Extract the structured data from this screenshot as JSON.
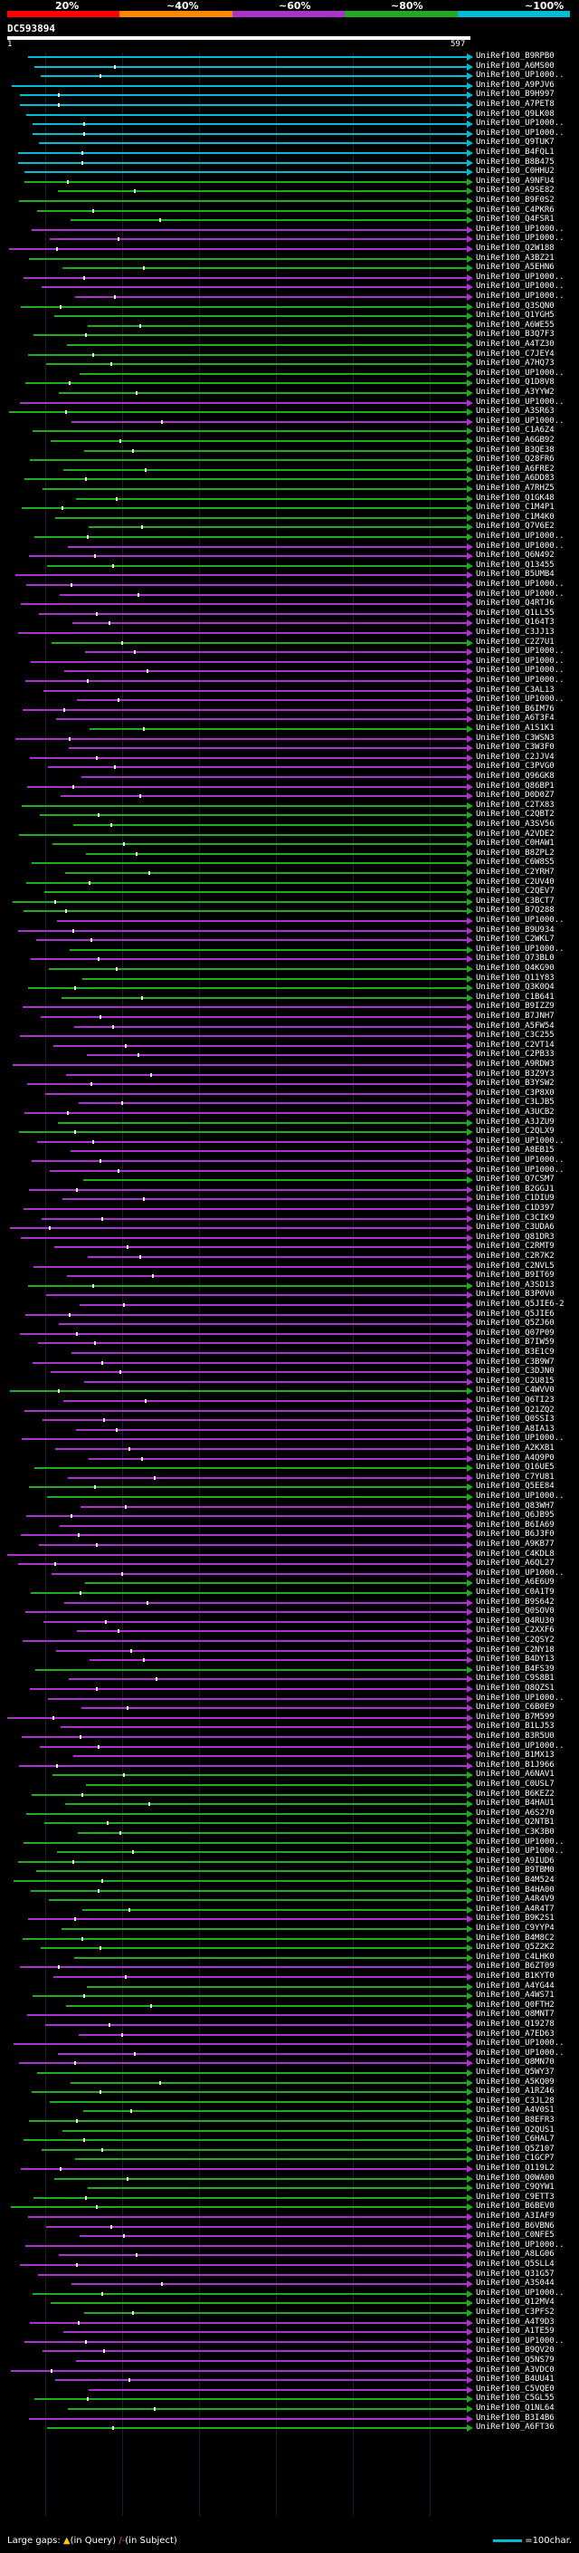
{
  "scale": {
    "labels": [
      "20%",
      "~40%",
      "~60%",
      "~80%",
      "~100%"
    ],
    "colors": [
      "#ff0000",
      "#ff8800",
      "#aa33cc",
      "#22aa22",
      "#00bcd4"
    ]
  },
  "query": {
    "id": "DC593894",
    "start": "1",
    "end": "597"
  },
  "legend": {
    "text": "Large gaps:",
    "query_mark": "▲",
    "query_text": "(in Query)",
    "subject_mark": "/-",
    "subject_text": "(in Subject)",
    "scale_text": "=100char."
  },
  "hits": [
    {
      "label": "UniRef100_B9RPB0",
      "color": "#00bcd4"
    },
    {
      "label": "UniRef100_A6MS00",
      "color": "#00bcd4"
    },
    {
      "label": "UniRef100_UP1000..",
      "color": "#00bcd4"
    },
    {
      "label": "UniRef100_A9PJV6",
      "color": "#00bcd4"
    },
    {
      "label": "UniRef100_B9H997",
      "color": "#00bcd4"
    },
    {
      "label": "UniRef100_A7PET8",
      "color": "#00bcd4"
    },
    {
      "label": "UniRef100_Q9LK08",
      "color": "#00bcd4"
    },
    {
      "label": "UniRef100_UP1000..",
      "color": "#00bcd4"
    },
    {
      "label": "UniRef100_UP1000..",
      "color": "#00bcd4"
    },
    {
      "label": "UniRef100_Q9TUK7",
      "color": "#00bcd4"
    },
    {
      "label": "UniRef100_B4FQL1",
      "color": "#00bcd4"
    },
    {
      "label": "UniRef100_B8B475",
      "color": "#00bcd4"
    },
    {
      "label": "UniRef100_C0HHU2",
      "color": "#00bcd4"
    },
    {
      "label": "UniRef100_A9NFU4",
      "color": "#22aa22"
    },
    {
      "label": "UniRef100_A9SE82",
      "color": "#22aa22"
    },
    {
      "label": "UniRef100_B9F0S2",
      "color": "#22aa22"
    },
    {
      "label": "UniRef100_C4PKR6",
      "color": "#22aa22"
    },
    {
      "label": "UniRef100_Q4FSR1",
      "color": "#22aa22"
    },
    {
      "label": "UniRef100_UP1000..",
      "color": "#aa33cc"
    },
    {
      "label": "UniRef100_UP1000..",
      "color": "#aa33cc"
    },
    {
      "label": "UniRef100_Q2W188",
      "color": "#aa33cc"
    },
    {
      "label": "UniRef100_A3BZ21",
      "color": "#22aa22"
    },
    {
      "label": "UniRef100_A5EHN6",
      "color": "#22aa22"
    },
    {
      "label": "UniRef100_UP1000..",
      "color": "#aa33cc"
    },
    {
      "label": "UniRef100_UP1000..",
      "color": "#aa33cc"
    },
    {
      "label": "UniRef100_UP1000..",
      "color": "#aa33cc"
    },
    {
      "label": "UniRef100_Q3SQN0",
      "color": "#22aa22"
    },
    {
      "label": "UniRef100_Q1YGH5",
      "color": "#22aa22"
    },
    {
      "label": "UniRef100_A6WE55",
      "color": "#22aa22"
    },
    {
      "label": "UniRef100_B3Q7F3",
      "color": "#22aa22"
    },
    {
      "label": "UniRef100_A4TZ30",
      "color": "#22aa22"
    },
    {
      "label": "UniRef100_C7JEY4",
      "color": "#22aa22"
    },
    {
      "label": "UniRef100_A7HQ73",
      "color": "#22aa22"
    },
    {
      "label": "UniRef100_UP1000..",
      "color": "#22aa22"
    },
    {
      "label": "UniRef100_Q1D8V8",
      "color": "#22aa22"
    },
    {
      "label": "UniRef100_A3YYW2",
      "color": "#22aa22"
    },
    {
      "label": "UniRef100_UP1000..",
      "color": "#aa33cc"
    },
    {
      "label": "UniRef100_A3SR63",
      "color": "#22aa22"
    },
    {
      "label": "UniRef100_UP1000..",
      "color": "#aa33cc"
    },
    {
      "label": "UniRef100_C1A6Z4",
      "color": "#22aa22"
    },
    {
      "label": "UniRef100_A6GB92",
      "color": "#22aa22"
    },
    {
      "label": "UniRef100_B3QE38",
      "color": "#22aa22"
    },
    {
      "label": "UniRef100_Q28FR6",
      "color": "#22aa22"
    },
    {
      "label": "UniRef100_A6FRE2",
      "color": "#22aa22"
    },
    {
      "label": "UniRef100_A6DD83",
      "color": "#22aa22"
    },
    {
      "label": "UniRef100_A7RHZ5",
      "color": "#22aa22"
    },
    {
      "label": "UniRef100_Q1GK48",
      "color": "#22aa22"
    },
    {
      "label": "UniRef100_C1M4P1",
      "color": "#22aa22"
    },
    {
      "label": "UniRef100_C1M4K0",
      "color": "#22aa22"
    },
    {
      "label": "UniRef100_Q7V6E2",
      "color": "#22aa22"
    },
    {
      "label": "UniRef100_UP1000..",
      "color": "#22aa22"
    },
    {
      "label": "UniRef100_UP1000..",
      "color": "#aa33cc"
    },
    {
      "label": "UniRef100_Q6N492",
      "color": "#aa33cc"
    },
    {
      "label": "UniRef100_Q13455",
      "color": "#22aa22"
    },
    {
      "label": "UniRef100_B5UMB4",
      "color": "#aa33cc"
    },
    {
      "label": "UniRef100_UP1000..",
      "color": "#aa33cc"
    },
    {
      "label": "UniRef100_UP1000..",
      "color": "#aa33cc"
    },
    {
      "label": "UniRef100_Q4RTJ6",
      "color": "#aa33cc"
    },
    {
      "label": "UniRef100_Q1LL55",
      "color": "#aa33cc"
    },
    {
      "label": "UniRef100_Q164T3",
      "color": "#aa33cc"
    },
    {
      "label": "UniRef100_C3JJ13",
      "color": "#aa33cc"
    },
    {
      "label": "UniRef100_C2Z7U1",
      "color": "#22aa22"
    },
    {
      "label": "UniRef100_UP1000..",
      "color": "#aa33cc"
    },
    {
      "label": "UniRef100_UP1000..",
      "color": "#aa33cc"
    },
    {
      "label": "UniRef100_UP1000..",
      "color": "#aa33cc"
    },
    {
      "label": "UniRef100_UP1000..",
      "color": "#aa33cc"
    },
    {
      "label": "UniRef100_C3AL13",
      "color": "#aa33cc"
    },
    {
      "label": "UniRef100_UP1000..",
      "color": "#aa33cc"
    },
    {
      "label": "UniRef100_B6IM76",
      "color": "#aa33cc"
    },
    {
      "label": "UniRef100_A6T3F4",
      "color": "#aa33cc"
    },
    {
      "label": "UniRef100_A1S1K1",
      "color": "#22aa22"
    },
    {
      "label": "UniRef100_C3WSN3",
      "color": "#aa33cc"
    },
    {
      "label": "UniRef100_C3W3F0",
      "color": "#aa33cc"
    },
    {
      "label": "UniRef100_C2JJV4",
      "color": "#aa33cc"
    },
    {
      "label": "UniRef100_C3PVG0",
      "color": "#aa33cc"
    },
    {
      "label": "UniRef100_Q96GK8",
      "color": "#aa33cc"
    },
    {
      "label": "UniRef100_Q86BP1",
      "color": "#aa33cc"
    },
    {
      "label": "UniRef100_D0D0Z7",
      "color": "#aa33cc"
    },
    {
      "label": "UniRef100_C2TX83",
      "color": "#22aa22"
    },
    {
      "label": "UniRef100_C2QBT2",
      "color": "#22aa22"
    },
    {
      "label": "UniRef100_A3SV56",
      "color": "#22aa22"
    },
    {
      "label": "UniRef100_A2VDE2",
      "color": "#22aa22"
    },
    {
      "label": "UniRef100_C0HAW1",
      "color": "#22aa22"
    },
    {
      "label": "UniRef100_B8ZPL2",
      "color": "#22aa22"
    },
    {
      "label": "UniRef100_C6W8S5",
      "color": "#22aa22"
    },
    {
      "label": "UniRef100_C2YRH7",
      "color": "#22aa22"
    },
    {
      "label": "UniRef100_C2UV40",
      "color": "#22aa22"
    },
    {
      "label": "UniRef100_C2QEV7",
      "color": "#22aa22"
    },
    {
      "label": "UniRef100_C3BCT7",
      "color": "#22aa22"
    },
    {
      "label": "UniRef100_B7Q288",
      "color": "#22aa22"
    },
    {
      "label": "UniRef100_UP1000..",
      "color": "#aa33cc"
    },
    {
      "label": "UniRef100_B9U934",
      "color": "#aa33cc"
    },
    {
      "label": "UniRef100_C2WKL7",
      "color": "#aa33cc"
    },
    {
      "label": "UniRef100_UP1000..",
      "color": "#22aa22"
    },
    {
      "label": "UniRef100_Q73BL0",
      "color": "#aa33cc"
    },
    {
      "label": "UniRef100_Q4KG90",
      "color": "#22aa22"
    },
    {
      "label": "UniRef100_Q11Y83",
      "color": "#22aa22"
    },
    {
      "label": "UniRef100_Q3K0Q4",
      "color": "#22aa22"
    },
    {
      "label": "UniRef100_C1B641",
      "color": "#22aa22"
    },
    {
      "label": "UniRef100_B9IZZ9",
      "color": "#aa33cc"
    },
    {
      "label": "UniRef100_B7JNH7",
      "color": "#aa33cc"
    },
    {
      "label": "UniRef100_A5FW54",
      "color": "#aa33cc"
    },
    {
      "label": "UniRef100_C3C255",
      "color": "#aa33cc"
    },
    {
      "label": "UniRef100_C2VT14",
      "color": "#aa33cc"
    },
    {
      "label": "UniRef100_C2PB33",
      "color": "#aa33cc"
    },
    {
      "label": "UniRef100_A9RDW3",
      "color": "#aa33cc"
    },
    {
      "label": "UniRef100_B3Z9Y3",
      "color": "#aa33cc"
    },
    {
      "label": "UniRef100_B3YSW2",
      "color": "#aa33cc"
    },
    {
      "label": "UniRef100_C3P8X0",
      "color": "#aa33cc"
    },
    {
      "label": "UniRef100_C3LJB5",
      "color": "#aa33cc"
    },
    {
      "label": "UniRef100_A3UCB2",
      "color": "#aa33cc"
    },
    {
      "label": "UniRef100_A3JZU9",
      "color": "#22aa22"
    },
    {
      "label": "UniRef100_C2QLX9",
      "color": "#22aa22"
    },
    {
      "label": "UniRef100_UP1000..",
      "color": "#aa33cc"
    },
    {
      "label": "UniRef100_A8EB15",
      "color": "#aa33cc"
    },
    {
      "label": "UniRef100_UP1000..",
      "color": "#aa33cc"
    },
    {
      "label": "UniRef100_UP1000..",
      "color": "#aa33cc"
    },
    {
      "label": "UniRef100_Q7CSM7",
      "color": "#22aa22"
    },
    {
      "label": "UniRef100_B2GGJ1",
      "color": "#aa33cc"
    },
    {
      "label": "UniRef100_C1DIU9",
      "color": "#aa33cc"
    },
    {
      "label": "UniRef100_C1D397",
      "color": "#aa33cc"
    },
    {
      "label": "UniRef100_C3CIK9",
      "color": "#aa33cc"
    },
    {
      "label": "UniRef100_C3UDA6",
      "color": "#aa33cc"
    },
    {
      "label": "UniRef100_Q81DR3",
      "color": "#aa33cc"
    },
    {
      "label": "UniRef100_C2RMT9",
      "color": "#aa33cc"
    },
    {
      "label": "UniRef100_C2R7K2",
      "color": "#aa33cc"
    },
    {
      "label": "UniRef100_C2NVL5",
      "color": "#aa33cc"
    },
    {
      "label": "UniRef100_B9IT69",
      "color": "#aa33cc"
    },
    {
      "label": "UniRef100_A3SD13",
      "color": "#22aa22"
    },
    {
      "label": "UniRef100_B3P0V0",
      "color": "#aa33cc"
    },
    {
      "label": "UniRef100_Q5JIE6-2",
      "color": "#aa33cc"
    },
    {
      "label": "UniRef100_Q5JIE6",
      "color": "#aa33cc"
    },
    {
      "label": "UniRef100_Q5ZJ60",
      "color": "#aa33cc"
    },
    {
      "label": "UniRef100_Q07P09",
      "color": "#aa33cc"
    },
    {
      "label": "UniRef100_B7IW59",
      "color": "#aa33cc"
    },
    {
      "label": "UniRef100_B3E1C9",
      "color": "#aa33cc"
    },
    {
      "label": "UniRef100_C3B9W7",
      "color": "#aa33cc"
    },
    {
      "label": "UniRef100_C3DJN0",
      "color": "#aa33cc"
    },
    {
      "label": "UniRef100_C2U815",
      "color": "#aa33cc"
    },
    {
      "label": "UniRef100_C4WVV0",
      "color": "#22aa22"
    },
    {
      "label": "UniRef100_Q6TI23",
      "color": "#aa33cc"
    },
    {
      "label": "UniRef100_Q21ZQ2",
      "color": "#aa33cc"
    },
    {
      "label": "UniRef100_Q0SSI3",
      "color": "#aa33cc"
    },
    {
      "label": "UniRef100_A8IA13",
      "color": "#aa33cc"
    },
    {
      "label": "UniRef100_UP1000..",
      "color": "#aa33cc"
    },
    {
      "label": "UniRef100_A2KXB1",
      "color": "#aa33cc"
    },
    {
      "label": "UniRef100_A4Q9P0",
      "color": "#aa33cc"
    },
    {
      "label": "UniRef100_Q16UE5",
      "color": "#22aa22"
    },
    {
      "label": "UniRef100_C7YU81",
      "color": "#aa33cc"
    },
    {
      "label": "UniRef100_Q5EE84",
      "color": "#22aa22"
    },
    {
      "label": "UniRef100_UP1000..",
      "color": "#22aa22"
    },
    {
      "label": "UniRef100_Q83WH7",
      "color": "#aa33cc"
    },
    {
      "label": "UniRef100_Q6JB95",
      "color": "#aa33cc"
    },
    {
      "label": "UniRef100_B6IA69",
      "color": "#aa33cc"
    },
    {
      "label": "UniRef100_B6J3F0",
      "color": "#aa33cc"
    },
    {
      "label": "UniRef100_A9KB77",
      "color": "#aa33cc"
    },
    {
      "label": "UniRef100_C4KDL8",
      "color": "#aa33cc"
    },
    {
      "label": "UniRef100_A6QL27",
      "color": "#aa33cc"
    },
    {
      "label": "UniRef100_UP1000..",
      "color": "#aa33cc"
    },
    {
      "label": "UniRef100_A6E6U9",
      "color": "#22aa22"
    },
    {
      "label": "UniRef100_C0A1T9",
      "color": "#22aa22"
    },
    {
      "label": "UniRef100_B9S642",
      "color": "#aa33cc"
    },
    {
      "label": "UniRef100_Q0SOV0",
      "color": "#aa33cc"
    },
    {
      "label": "UniRef100_Q4RU30",
      "color": "#aa33cc"
    },
    {
      "label": "UniRef100_C2XXF6",
      "color": "#aa33cc"
    },
    {
      "label": "UniRef100_C2QSY2",
      "color": "#aa33cc"
    },
    {
      "label": "UniRef100_C2NY18",
      "color": "#aa33cc"
    },
    {
      "label": "UniRef100_B4DY13",
      "color": "#aa33cc"
    },
    {
      "label": "UniRef100_B4FS39",
      "color": "#22aa22"
    },
    {
      "label": "UniRef100_C9S8B1",
      "color": "#aa33cc"
    },
    {
      "label": "UniRef100_Q8QZS1",
      "color": "#aa33cc"
    },
    {
      "label": "UniRef100_UP1000..",
      "color": "#aa33cc"
    },
    {
      "label": "UniRef100_C6B0E9",
      "color": "#aa33cc"
    },
    {
      "label": "UniRef100_B7M599",
      "color": "#aa33cc"
    },
    {
      "label": "UniRef100_B1LJ53",
      "color": "#aa33cc"
    },
    {
      "label": "UniRef100_B3R5U0",
      "color": "#aa33cc"
    },
    {
      "label": "UniRef100_UP1000..",
      "color": "#aa33cc"
    },
    {
      "label": "UniRef100_B1MX13",
      "color": "#aa33cc"
    },
    {
      "label": "UniRef100_B1J966",
      "color": "#aa33cc"
    },
    {
      "label": "UniRef100_A6NAV1",
      "color": "#22aa22"
    },
    {
      "label": "UniRef100_C0USL7",
      "color": "#22aa22"
    },
    {
      "label": "UniRef100_B6KEZ2",
      "color": "#22aa22"
    },
    {
      "label": "UniRef100_B4HAU1",
      "color": "#22aa22"
    },
    {
      "label": "UniRef100_A6S270",
      "color": "#22aa22"
    },
    {
      "label": "UniRef100_Q2NTB1",
      "color": "#22aa22"
    },
    {
      "label": "UniRef100_C3K3B0",
      "color": "#22aa22"
    },
    {
      "label": "UniRef100_UP1000..",
      "color": "#22aa22"
    },
    {
      "label": "UniRef100_UP1000..",
      "color": "#22aa22"
    },
    {
      "label": "UniRef100_A9IUD6",
      "color": "#22aa22"
    },
    {
      "label": "UniRef100_B9TBM0",
      "color": "#22aa22"
    },
    {
      "label": "UniRef100_B4M524",
      "color": "#22aa22"
    },
    {
      "label": "UniRef100_B4HA00",
      "color": "#22aa22"
    },
    {
      "label": "UniRef100_A4R4V9",
      "color": "#22aa22"
    },
    {
      "label": "UniRef100_A4R4T7",
      "color": "#22aa22"
    },
    {
      "label": "UniRef100_B9K2S1",
      "color": "#aa33cc"
    },
    {
      "label": "UniRef100_C9YYP4",
      "color": "#22aa22"
    },
    {
      "label": "UniRef100_B4M8C2",
      "color": "#22aa22"
    },
    {
      "label": "UniRef100_Q5Z2K2",
      "color": "#22aa22"
    },
    {
      "label": "UniRef100_C4LHK0",
      "color": "#22aa22"
    },
    {
      "label": "UniRef100_B6ZT09",
      "color": "#aa33cc"
    },
    {
      "label": "UniRef100_B1KYT0",
      "color": "#aa33cc"
    },
    {
      "label": "UniRef100_A4YG44",
      "color": "#22aa22"
    },
    {
      "label": "UniRef100_A4WS71",
      "color": "#22aa22"
    },
    {
      "label": "UniRef100_Q0FTH2",
      "color": "#22aa22"
    },
    {
      "label": "UniRef100_Q8MNT7",
      "color": "#aa33cc"
    },
    {
      "label": "UniRef100_Q19278",
      "color": "#aa33cc"
    },
    {
      "label": "UniRef100_A7ED63",
      "color": "#aa33cc"
    },
    {
      "label": "UniRef100_UP1000..",
      "color": "#aa33cc"
    },
    {
      "label": "UniRef100_UP1000..",
      "color": "#aa33cc"
    },
    {
      "label": "UniRef100_Q8MN70",
      "color": "#aa33cc"
    },
    {
      "label": "UniRef100_Q5WY37",
      "color": "#22aa22"
    },
    {
      "label": "UniRef100_A5KQ09",
      "color": "#22aa22"
    },
    {
      "label": "UniRef100_A1RZ46",
      "color": "#22aa22"
    },
    {
      "label": "UniRef100_C3JL28",
      "color": "#22aa22"
    },
    {
      "label": "UniRef100_A4V0S1",
      "color": "#22aa22"
    },
    {
      "label": "UniRef100_B8EFR3",
      "color": "#22aa22"
    },
    {
      "label": "UniRef100_Q2QUS1",
      "color": "#22aa22"
    },
    {
      "label": "UniRef100_C6HAL7",
      "color": "#22aa22"
    },
    {
      "label": "UniRef100_Q5Z107",
      "color": "#22aa22"
    },
    {
      "label": "UniRef100_C1GCP7",
      "color": "#22aa22"
    },
    {
      "label": "UniRef100_Q119L2",
      "color": "#aa33cc"
    },
    {
      "label": "UniRef100_Q0WA00",
      "color": "#22aa22"
    },
    {
      "label": "UniRef100_C9QYW1",
      "color": "#22aa22"
    },
    {
      "label": "UniRef100_C9ETT3",
      "color": "#22aa22"
    },
    {
      "label": "UniRef100_B6BEV0",
      "color": "#22aa22"
    },
    {
      "label": "UniRef100_A3IAF9",
      "color": "#aa33cc"
    },
    {
      "label": "UniRef100_B6VBN6",
      "color": "#aa33cc"
    },
    {
      "label": "UniRef100_C0NFE5",
      "color": "#aa33cc"
    },
    {
      "label": "UniRef100_UP1000..",
      "color": "#aa33cc"
    },
    {
      "label": "UniRef100_A8LG06",
      "color": "#aa33cc"
    },
    {
      "label": "UniRef100_Q5SLL4",
      "color": "#aa33cc"
    },
    {
      "label": "UniRef100_Q31G57",
      "color": "#aa33cc"
    },
    {
      "label": "UniRef100_A3S044",
      "color": "#aa33cc"
    },
    {
      "label": "UniRef100_UP1000..",
      "color": "#22aa22"
    },
    {
      "label": "UniRef100_Q12MV4",
      "color": "#22aa22"
    },
    {
      "label": "UniRef100_C3PFS2",
      "color": "#22aa22"
    },
    {
      "label": "UniRef100_A4T9D3",
      "color": "#aa33cc"
    },
    {
      "label": "UniRef100_A1TE59",
      "color": "#aa33cc"
    },
    {
      "label": "UniRef100_UP1000..",
      "color": "#aa33cc"
    },
    {
      "label": "UniRef100_B9QV20",
      "color": "#aa33cc"
    },
    {
      "label": "UniRef100_Q5NS79",
      "color": "#aa33cc"
    },
    {
      "label": "UniRef100_A3VDC0",
      "color": "#aa33cc"
    },
    {
      "label": "UniRef100_B4UU41",
      "color": "#aa33cc"
    },
    {
      "label": "UniRef100_C5VQE0",
      "color": "#aa33cc"
    },
    {
      "label": "UniRef100_C5GL55",
      "color": "#22aa22"
    },
    {
      "label": "UniRef100_Q1NL64",
      "color": "#22aa22"
    },
    {
      "label": "UniRef100_B3I4B6",
      "color": "#aa33cc"
    },
    {
      "label": "UniRef100_A6FT36",
      "color": "#22aa22"
    }
  ]
}
